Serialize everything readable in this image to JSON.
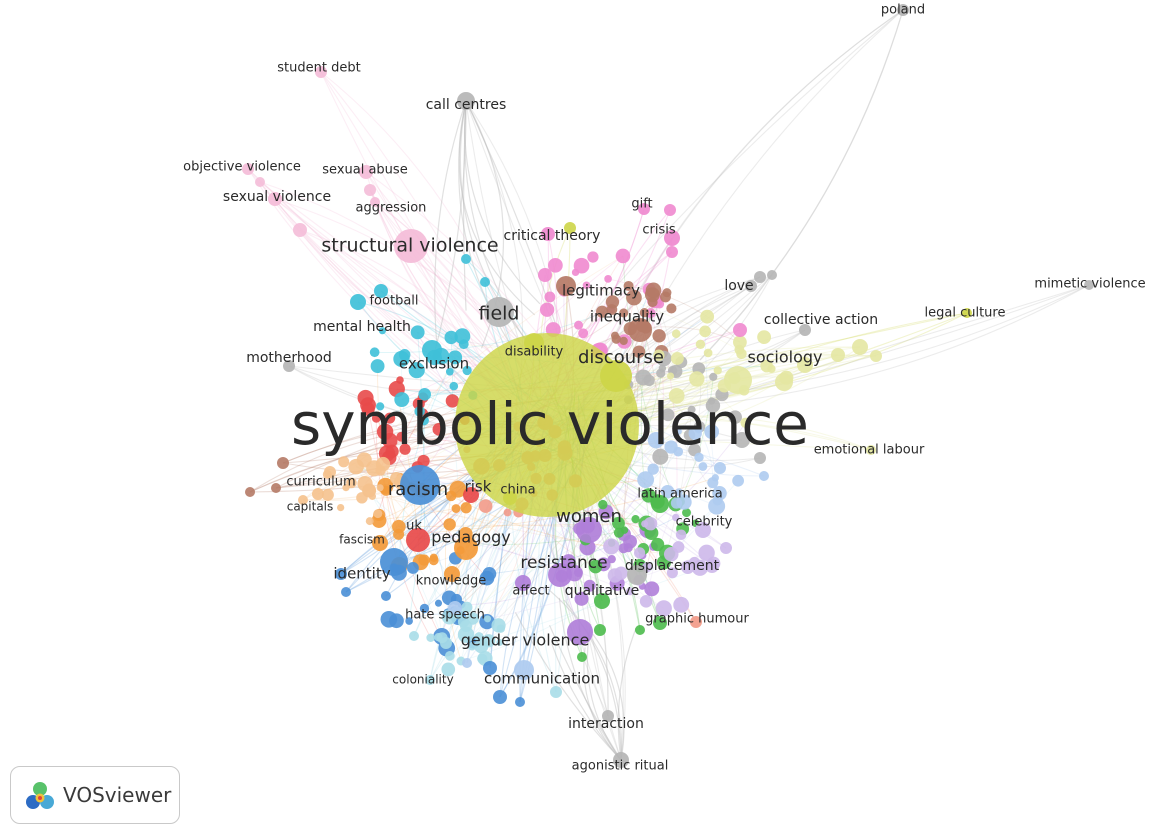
{
  "brand": {
    "name": "VOSviewer",
    "logo_icon": "vosviewer-logo-icon"
  },
  "map": {
    "cluster_colors": {
      "yellow": "#cdd548",
      "red": "#e84a4a",
      "cyan": "#3fc0d8",
      "orange": "#f39a3a",
      "blue": "#4a8fd6",
      "purple": "#b07fd9",
      "green": "#4dbb4d",
      "pink": "#ef89cf",
      "brown": "#b57a66",
      "grey": "#b5b5b5",
      "lightblue": "#aecbf0",
      "lightpink": "#f4bcd8",
      "lavender": "#cdb8ea",
      "paleyellow": "#e4e7a2",
      "lightcyan": "#a8dde8",
      "salmon": "#f29a88",
      "peach": "#f5c28e"
    },
    "labels": [
      "symbolic violence",
      "structural violence",
      "field",
      "discourse",
      "racism",
      "women",
      "pedagogy",
      "resistance",
      "sociology",
      "gender violence",
      "communication",
      "identity",
      "exclusion",
      "inequality",
      "legitimacy",
      "mental health",
      "motherhood",
      "football",
      "curriculum",
      "capitals",
      "risk",
      "china",
      "uk",
      "fascism",
      "knowledge",
      "hate speech",
      "affect",
      "qualitative",
      "displacement",
      "latin america",
      "celebrity",
      "graphic humour",
      "coloniality",
      "interaction",
      "agonistic ritual",
      "emotional labour",
      "collective action",
      "love",
      "legal culture",
      "mimetic violence",
      "poland",
      "student debt",
      "call centres",
      "objective violence",
      "sexual abuse",
      "sexual violence",
      "aggression",
      "critical theory",
      "gift",
      "crisis",
      "disability"
    ]
  }
}
